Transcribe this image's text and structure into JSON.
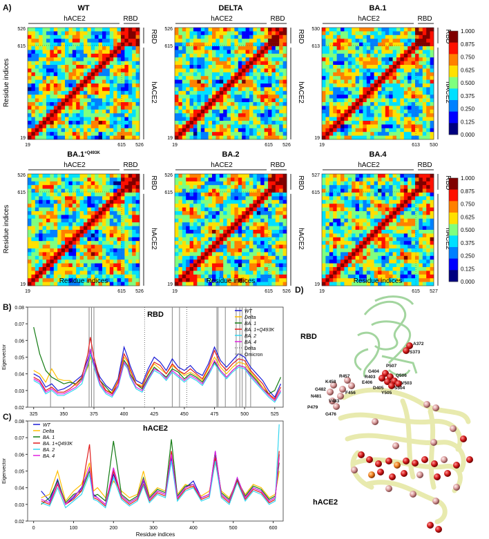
{
  "panel_labels": {
    "a": "A)",
    "b": "B)",
    "c": "C)",
    "d": "D)"
  },
  "heatmaps": {
    "x_axis_label": "Residue indices",
    "y_axis_label": "Residue indices",
    "segment_labels": {
      "left": "hACE2",
      "right": "RBD"
    },
    "maps": [
      {
        "title": "WT",
        "ticks_x": [
          "19",
          "615",
          "526"
        ],
        "ticks_y": [
          "526",
          "615",
          "19"
        ]
      },
      {
        "title": "DELTA",
        "ticks_x": [
          "19",
          "615",
          "526"
        ],
        "ticks_y": [
          "526",
          "615",
          "19"
        ]
      },
      {
        "title": "BA.1",
        "ticks_x": [
          "19",
          "613",
          "530"
        ],
        "ticks_y": [
          "530",
          "613",
          "19"
        ]
      },
      {
        "title": "BA.1",
        "title_sup": "+Q493K",
        "ticks_x": [
          "19",
          "615",
          "526"
        ],
        "ticks_y": [
          "526",
          "615",
          "19"
        ]
      },
      {
        "title": "BA.2",
        "ticks_x": [
          "19",
          "615",
          "526"
        ],
        "ticks_y": [
          "526",
          "615",
          "19"
        ]
      },
      {
        "title": "BA.4",
        "ticks_x": [
          "19",
          "615",
          "527"
        ],
        "ticks_y": [
          "527",
          "615",
          "19"
        ]
      }
    ],
    "colorbar_ticks": [
      "1.000",
      "0.875",
      "0.750",
      "0.625",
      "0.500",
      "0.375",
      "0.250",
      "0.125",
      "0.000"
    ],
    "colors": [
      "#00007f",
      "#0000ff",
      "#0080ff",
      "#00e0ff",
      "#7fff7f",
      "#ffe000",
      "#ff8000",
      "#ff1000",
      "#7f0000"
    ]
  },
  "chart_data": [
    {
      "type": "line",
      "title": "RBD",
      "xlabel": "",
      "ylabel": "Eigenvector",
      "xlim": [
        320,
        532
      ],
      "ylim": [
        0.02,
        0.08
      ],
      "xticks": [
        "325",
        "350",
        "375",
        "400",
        "425",
        "450",
        "475",
        "500",
        "525"
      ],
      "yticks": [
        "0.02",
        "0.03",
        "0.04",
        "0.05",
        "0.06",
        "0.07",
        "0.08"
      ],
      "delta_marks": [
        339,
        371,
        373,
        375,
        440,
        446,
        477,
        478,
        484,
        493,
        496,
        498,
        501,
        505
      ],
      "omicron_marks": [
        417,
        452
      ],
      "x": [
        325,
        330,
        335,
        340,
        345,
        350,
        355,
        360,
        365,
        370,
        372,
        375,
        380,
        385,
        390,
        395,
        400,
        403,
        405,
        410,
        415,
        420,
        425,
        430,
        435,
        440,
        445,
        450,
        455,
        460,
        465,
        470,
        475,
        480,
        485,
        490,
        495,
        500,
        505,
        510,
        515,
        520,
        525,
        530
      ],
      "series": [
        {
          "name": "WT",
          "color": "#1b1bd6",
          "values": [
            0.04,
            0.038,
            0.032,
            0.034,
            0.03,
            0.031,
            0.033,
            0.036,
            0.039,
            0.049,
            0.054,
            0.047,
            0.038,
            0.033,
            0.03,
            0.037,
            0.056,
            0.05,
            0.045,
            0.036,
            0.034,
            0.043,
            0.05,
            0.047,
            0.042,
            0.049,
            0.044,
            0.042,
            0.045,
            0.041,
            0.039,
            0.046,
            0.056,
            0.048,
            0.044,
            0.048,
            0.052,
            0.05,
            0.044,
            0.04,
            0.036,
            0.03,
            0.026,
            0.034
          ]
        },
        {
          "name": "Delta",
          "color": "#ffbf00",
          "values": [
            0.042,
            0.04,
            0.035,
            0.043,
            0.037,
            0.036,
            0.036,
            0.033,
            0.036,
            0.044,
            0.05,
            0.045,
            0.034,
            0.03,
            0.029,
            0.036,
            0.05,
            0.047,
            0.042,
            0.034,
            0.033,
            0.04,
            0.046,
            0.043,
            0.04,
            0.045,
            0.042,
            0.039,
            0.041,
            0.039,
            0.036,
            0.043,
            0.05,
            0.044,
            0.04,
            0.044,
            0.047,
            0.046,
            0.041,
            0.037,
            0.032,
            0.028,
            0.024,
            0.03
          ]
        },
        {
          "name": "BA. 1",
          "color": "#117a11",
          "values": [
            0.068,
            0.052,
            0.042,
            0.038,
            0.036,
            0.034,
            0.035,
            0.034,
            0.037,
            0.045,
            0.052,
            0.046,
            0.036,
            0.032,
            0.028,
            0.033,
            0.048,
            0.045,
            0.04,
            0.034,
            0.031,
            0.038,
            0.044,
            0.041,
            0.038,
            0.043,
            0.041,
            0.037,
            0.04,
            0.038,
            0.035,
            0.041,
            0.047,
            0.042,
            0.038,
            0.042,
            0.045,
            0.044,
            0.04,
            0.036,
            0.031,
            0.028,
            0.03,
            0.038
          ]
        },
        {
          "name": "BA. 1+Q493K",
          "color": "#e01a1a",
          "values": [
            0.038,
            0.036,
            0.03,
            0.032,
            0.029,
            0.029,
            0.031,
            0.034,
            0.038,
            0.052,
            0.062,
            0.05,
            0.036,
            0.03,
            0.028,
            0.035,
            0.052,
            0.048,
            0.043,
            0.034,
            0.032,
            0.041,
            0.047,
            0.045,
            0.04,
            0.046,
            0.042,
            0.04,
            0.043,
            0.04,
            0.037,
            0.044,
            0.054,
            0.046,
            0.042,
            0.046,
            0.049,
            0.048,
            0.042,
            0.038,
            0.034,
            0.028,
            0.025,
            0.032
          ]
        },
        {
          "name": "BA. 2",
          "color": "#33d6f0",
          "values": [
            0.036,
            0.034,
            0.028,
            0.03,
            0.027,
            0.027,
            0.029,
            0.031,
            0.034,
            0.046,
            0.052,
            0.044,
            0.033,
            0.028,
            0.026,
            0.032,
            0.046,
            0.043,
            0.038,
            0.031,
            0.029,
            0.036,
            0.042,
            0.04,
            0.036,
            0.041,
            0.038,
            0.035,
            0.038,
            0.036,
            0.033,
            0.039,
            0.046,
            0.041,
            0.037,
            0.041,
            0.044,
            0.043,
            0.038,
            0.034,
            0.03,
            0.026,
            0.023,
            0.029
          ]
        },
        {
          "name": "BA. 4",
          "color": "#e020e0",
          "values": [
            0.037,
            0.035,
            0.029,
            0.031,
            0.028,
            0.028,
            0.03,
            0.032,
            0.036,
            0.047,
            0.055,
            0.046,
            0.034,
            0.029,
            0.027,
            0.033,
            0.047,
            0.044,
            0.039,
            0.032,
            0.03,
            0.037,
            0.043,
            0.041,
            0.037,
            0.042,
            0.039,
            0.036,
            0.039,
            0.037,
            0.034,
            0.04,
            0.048,
            0.042,
            0.038,
            0.042,
            0.045,
            0.044,
            0.039,
            0.035,
            0.031,
            0.027,
            0.024,
            0.03
          ]
        }
      ],
      "legend_extra": [
        {
          "name": "Delta",
          "style": "dotted"
        },
        {
          "name": "Omicron",
          "style": "solid"
        }
      ]
    },
    {
      "type": "line",
      "title": "hACE2",
      "xlabel": "Residue indices",
      "ylabel": "Eigenvector",
      "xlim": [
        -15,
        625
      ],
      "ylim": [
        0.02,
        0.08
      ],
      "xticks": [
        "0",
        "100",
        "200",
        "300",
        "400",
        "500",
        "600"
      ],
      "yticks": [
        "0.02",
        "0.03",
        "0.04",
        "0.05",
        "0.06",
        "0.07",
        "0.08"
      ],
      "x": [
        19,
        40,
        60,
        80,
        100,
        120,
        140,
        150,
        160,
        180,
        200,
        220,
        240,
        260,
        275,
        290,
        310,
        330,
        345,
        360,
        380,
        400,
        420,
        440,
        455,
        470,
        490,
        510,
        530,
        550,
        570,
        590,
        605,
        615
      ],
      "series": [
        {
          "name": "WT",
          "color": "#1b1bd6",
          "values": [
            0.038,
            0.032,
            0.045,
            0.03,
            0.034,
            0.04,
            0.052,
            0.036,
            0.034,
            0.03,
            0.048,
            0.035,
            0.031,
            0.034,
            0.044,
            0.033,
            0.038,
            0.036,
            0.058,
            0.034,
            0.04,
            0.044,
            0.034,
            0.036,
            0.062,
            0.036,
            0.032,
            0.046,
            0.034,
            0.04,
            0.038,
            0.032,
            0.034,
            0.06
          ]
        },
        {
          "name": "Delta",
          "color": "#ffbf00",
          "values": [
            0.034,
            0.036,
            0.05,
            0.032,
            0.038,
            0.042,
            0.055,
            0.038,
            0.04,
            0.034,
            0.044,
            0.038,
            0.034,
            0.036,
            0.05,
            0.035,
            0.04,
            0.038,
            0.06,
            0.036,
            0.042,
            0.04,
            0.035,
            0.038,
            0.055,
            0.038,
            0.034,
            0.044,
            0.036,
            0.042,
            0.04,
            0.034,
            0.036,
            0.05
          ]
        },
        {
          "name": "BA. 1",
          "color": "#117a11",
          "values": [
            0.03,
            0.034,
            0.044,
            0.031,
            0.036,
            0.038,
            0.05,
            0.035,
            0.036,
            0.032,
            0.068,
            0.036,
            0.032,
            0.035,
            0.046,
            0.034,
            0.039,
            0.037,
            0.069,
            0.035,
            0.041,
            0.042,
            0.034,
            0.036,
            0.06,
            0.037,
            0.033,
            0.045,
            0.035,
            0.041,
            0.039,
            0.033,
            0.035,
            0.055
          ]
        },
        {
          "name": "BA. 1+Q493K",
          "color": "#e01a1a",
          "values": [
            0.032,
            0.03,
            0.042,
            0.03,
            0.033,
            0.038,
            0.066,
            0.034,
            0.033,
            0.029,
            0.05,
            0.034,
            0.03,
            0.033,
            0.042,
            0.032,
            0.037,
            0.035,
            0.062,
            0.033,
            0.039,
            0.041,
            0.033,
            0.035,
            0.058,
            0.035,
            0.031,
            0.044,
            0.033,
            0.039,
            0.037,
            0.031,
            0.033,
            0.062
          ]
        },
        {
          "name": "BA. 2",
          "color": "#33d6f0",
          "values": [
            0.031,
            0.029,
            0.04,
            0.028,
            0.032,
            0.036,
            0.048,
            0.033,
            0.032,
            0.028,
            0.046,
            0.033,
            0.029,
            0.032,
            0.041,
            0.031,
            0.036,
            0.034,
            0.056,
            0.032,
            0.038,
            0.04,
            0.032,
            0.034,
            0.056,
            0.034,
            0.03,
            0.043,
            0.032,
            0.038,
            0.036,
            0.03,
            0.032,
            0.078
          ]
        },
        {
          "name": "BA. 4",
          "color": "#e020e0",
          "values": [
            0.033,
            0.031,
            0.043,
            0.03,
            0.035,
            0.039,
            0.052,
            0.035,
            0.034,
            0.03,
            0.052,
            0.035,
            0.031,
            0.034,
            0.045,
            0.033,
            0.038,
            0.036,
            0.06,
            0.034,
            0.04,
            0.042,
            0.034,
            0.036,
            0.062,
            0.036,
            0.032,
            0.046,
            0.034,
            0.04,
            0.038,
            0.032,
            0.034,
            0.058
          ]
        }
      ]
    }
  ],
  "structure": {
    "rbd_label": "RBD",
    "hace2_label": "hACE2",
    "residues": [
      "A372",
      "S373",
      "P507",
      "G404",
      "Q506",
      "R403",
      "V503",
      "E406",
      "S504",
      "D405",
      "Y505",
      "R457",
      "K458",
      "F456",
      "G482",
      "N481",
      "V483",
      "P479",
      "G476"
    ]
  }
}
